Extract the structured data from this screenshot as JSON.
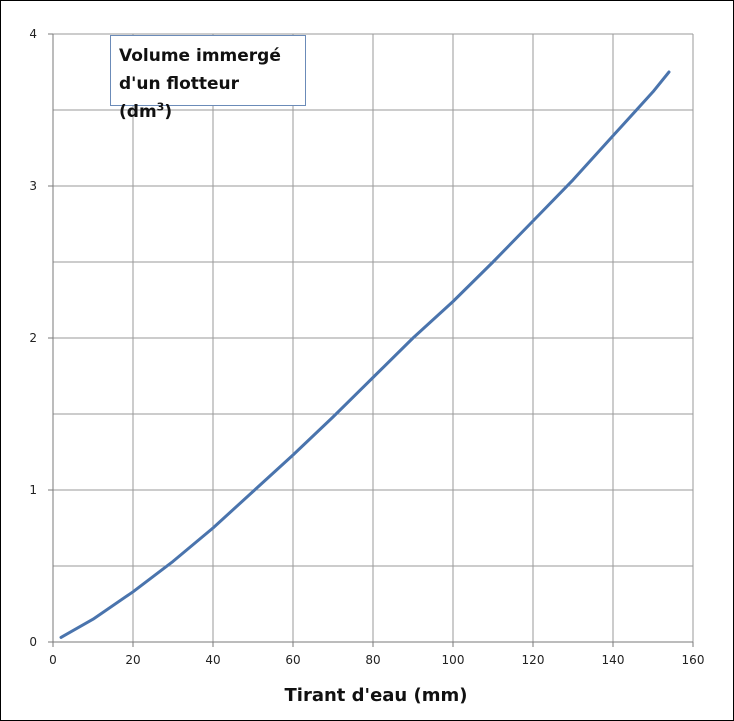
{
  "chart_data": {
    "type": "line",
    "title_lines": [
      "Volume immergé",
      "d'un flotteur (dm",
      "3",
      ")"
    ],
    "xlabel": "Tirant d'eau (mm)",
    "ylabel": "",
    "xlim": [
      0,
      160
    ],
    "ylim": [
      0,
      4
    ],
    "xticks": [
      0,
      20,
      40,
      60,
      80,
      100,
      120,
      140,
      160
    ],
    "yticks": [
      0,
      1,
      2,
      3,
      4
    ],
    "grid": true,
    "series": [
      {
        "color": "#4a74ad",
        "x": [
          2,
          10,
          20,
          30,
          40,
          50,
          60,
          70,
          80,
          90,
          100,
          110,
          120,
          130,
          140,
          150,
          154
        ],
        "y": [
          0.03,
          0.15,
          0.33,
          0.53,
          0.75,
          0.99,
          1.23,
          1.48,
          1.74,
          2.0,
          2.24,
          2.5,
          2.77,
          3.04,
          3.33,
          3.62,
          3.75
        ]
      }
    ]
  }
}
